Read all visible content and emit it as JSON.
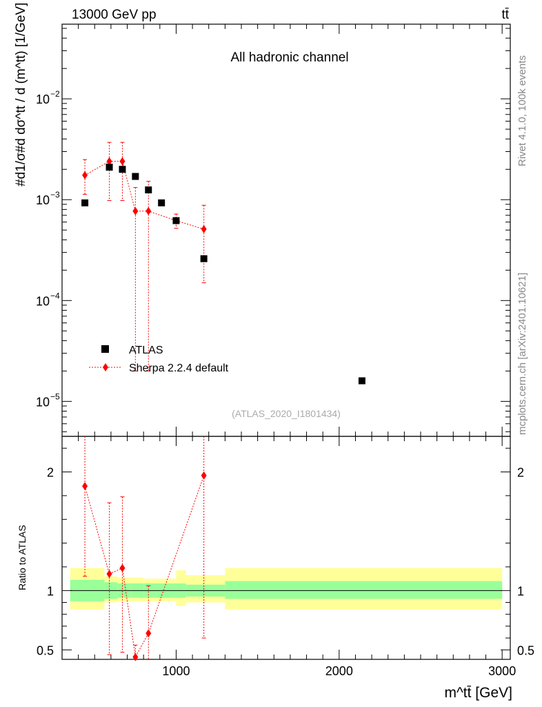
{
  "header": {
    "left": "13000 GeV pp",
    "right": "tt̄"
  },
  "chart_data": [
    {
      "type": "scatter",
      "panel": "main",
      "title": "All hadronic channel",
      "ylabel": "#d1/σ#d dσ^tt / d (m^tt) [1/GeV]",
      "xlabel": "m^tt̄ [GeV]",
      "yscale": "log",
      "ylim": [
        4.5e-06,
        0.055
      ],
      "xlim": [
        300,
        3050
      ],
      "ytick_labels": [
        {
          "value": 1e-05,
          "base": "10",
          "exp": "−5"
        },
        {
          "value": 0.0001,
          "base": "10",
          "exp": "−4"
        },
        {
          "value": 0.001,
          "base": "10",
          "exp": "−3"
        },
        {
          "value": 0.01,
          "base": "10",
          "exp": "−2"
        }
      ],
      "series": [
        {
          "name": "ATLAS",
          "color": "#000000",
          "marker": "square",
          "x": [
            440,
            590,
            670,
            750,
            830,
            910,
            1000,
            1170,
            2140
          ],
          "y": [
            0.00093,
            0.0021,
            0.002,
            0.0017,
            0.00125,
            0.00093,
            0.00062,
            0.00026,
            1.6e-05
          ]
        },
        {
          "name": "Sherpa 2.2.4 default",
          "color": "#ff0000",
          "marker": "diamond",
          "line": "dotted",
          "x": [
            440,
            590,
            670,
            750,
            830,
            1000,
            1170
          ],
          "y": [
            0.00175,
            0.0024,
            0.0024,
            0.00077,
            0.00077,
            0.00062,
            0.00051
          ],
          "err_lo": [
            0.00062,
            0.00142,
            0.00142,
            0.00075,
            0.00075,
            0.0001,
            0.00036
          ],
          "err_hi": [
            0.00075,
            0.0013,
            0.0013,
            0.00055,
            0.00075,
            0.0001,
            0.00037
          ]
        }
      ],
      "legend": [
        "ATLAS",
        "Sherpa 2.2.4 default"
      ],
      "annotation": "(ATLAS_2020_I1801434)"
    },
    {
      "type": "scatter",
      "panel": "ratio",
      "ylabel": "Ratio to ATLAS",
      "ylim": [
        0.42,
        2.3
      ],
      "ytick_labels": [
        "0.5",
        "1",
        "2"
      ],
      "ytick_values": [
        0.5,
        1,
        2
      ],
      "xtick_labels": [
        "1000",
        "2000",
        "3000"
      ],
      "xtick_values": [
        1000,
        2000,
        3000
      ],
      "reference_band": {
        "edges": [
          350,
          560,
          640,
          720,
          800,
          1000,
          1060,
          1300,
          3000
        ],
        "inner_lo": [
          0.91,
          0.93,
          0.94,
          0.94,
          0.94,
          0.94,
          0.95,
          0.93
        ],
        "inner_hi": [
          1.09,
          1.07,
          1.06,
          1.06,
          1.06,
          1.06,
          1.05,
          1.08
        ],
        "outer_lo": [
          0.84,
          0.9,
          0.91,
          0.91,
          0.91,
          0.87,
          0.9,
          0.84
        ],
        "outer_hi": [
          1.19,
          1.12,
          1.11,
          1.11,
          1.1,
          1.17,
          1.13,
          1.19
        ]
      },
      "series": [
        {
          "name": "Sherpa 2.2.4 default",
          "color": "#ff0000",
          "x": [
            440,
            590,
            670,
            750,
            830,
            1170
          ],
          "y": [
            1.88,
            1.14,
            1.19,
            0.44,
            0.64,
            1.97
          ],
          "err_lo": [
            0.76,
            0.68,
            0.71,
            0.1,
            0.3,
            1.37
          ],
          "err_hi": [
            0.45,
            0.6,
            0.6,
            0.1,
            0.4,
            0.4
          ]
        }
      ]
    }
  ],
  "side_labels": {
    "top": "Rivet 4.1.0,  100k events",
    "bottom": "mcplots.cern.ch [arXiv:2401.10621]"
  }
}
